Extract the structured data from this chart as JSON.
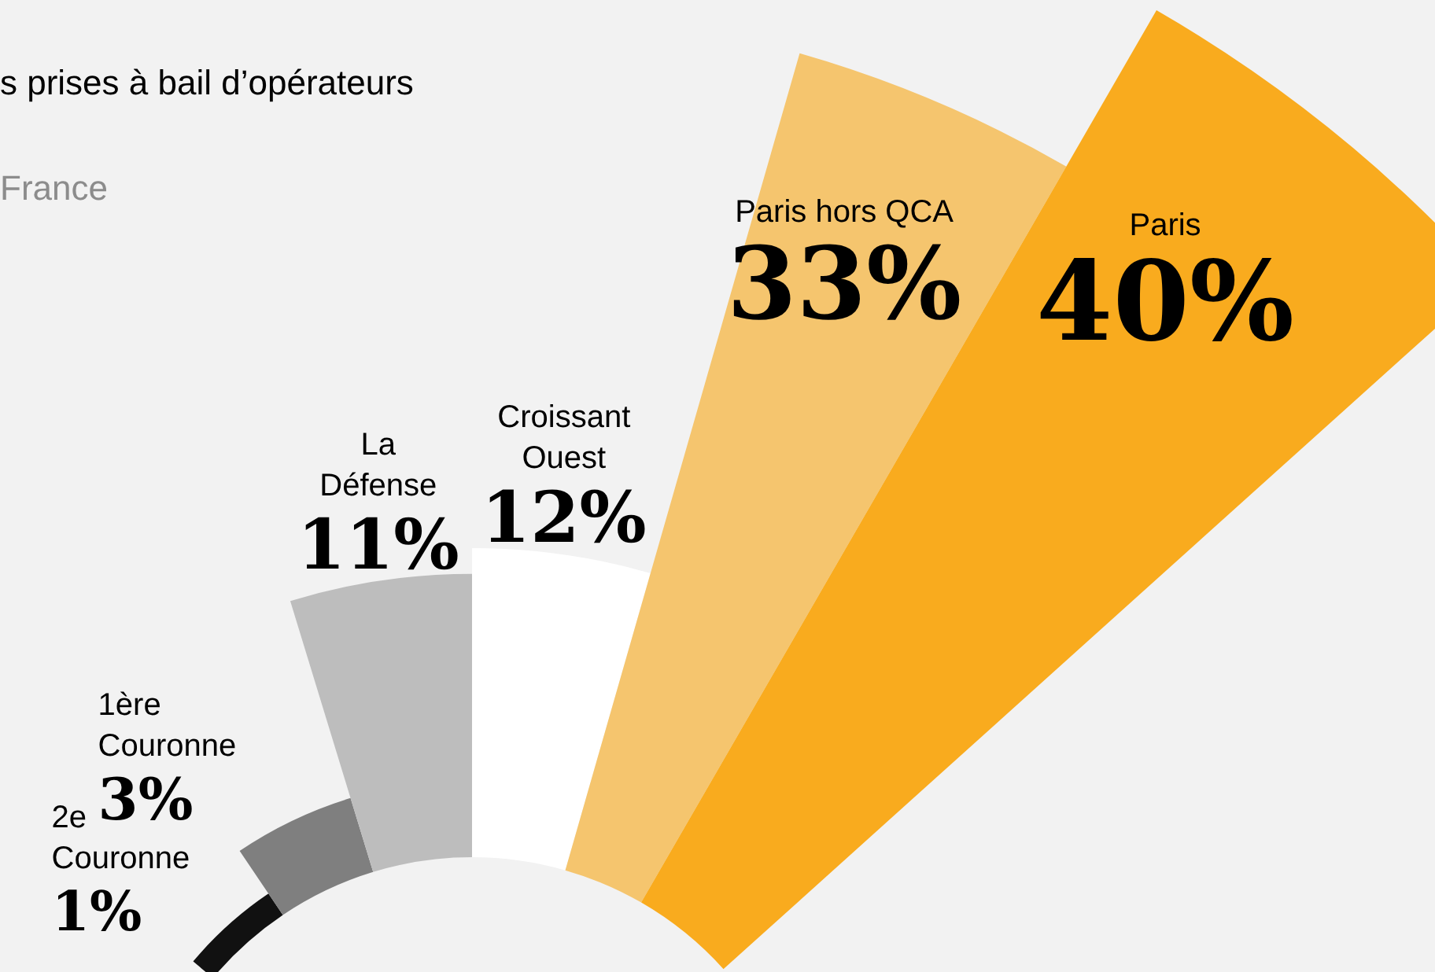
{
  "chart_data": {
    "type": "other",
    "title": "s prises à bail d’opérateurs",
    "subtitle": "France",
    "categories": [
      "2e Couronne",
      "1ère Couronne",
      "La Défense",
      "Croissant Ouest",
      "Paris hors QCA",
      "Paris"
    ],
    "values": [
      1,
      3,
      11,
      12,
      33,
      40
    ],
    "value_labels": [
      "1%",
      "3%",
      "11%",
      "12%",
      "33%",
      "40%"
    ],
    "colors": [
      "#111111",
      "#7f7f7f",
      "#bdbdbd",
      "#ffffff",
      "#f5c56e",
      "#f9ab1e"
    ]
  }
}
